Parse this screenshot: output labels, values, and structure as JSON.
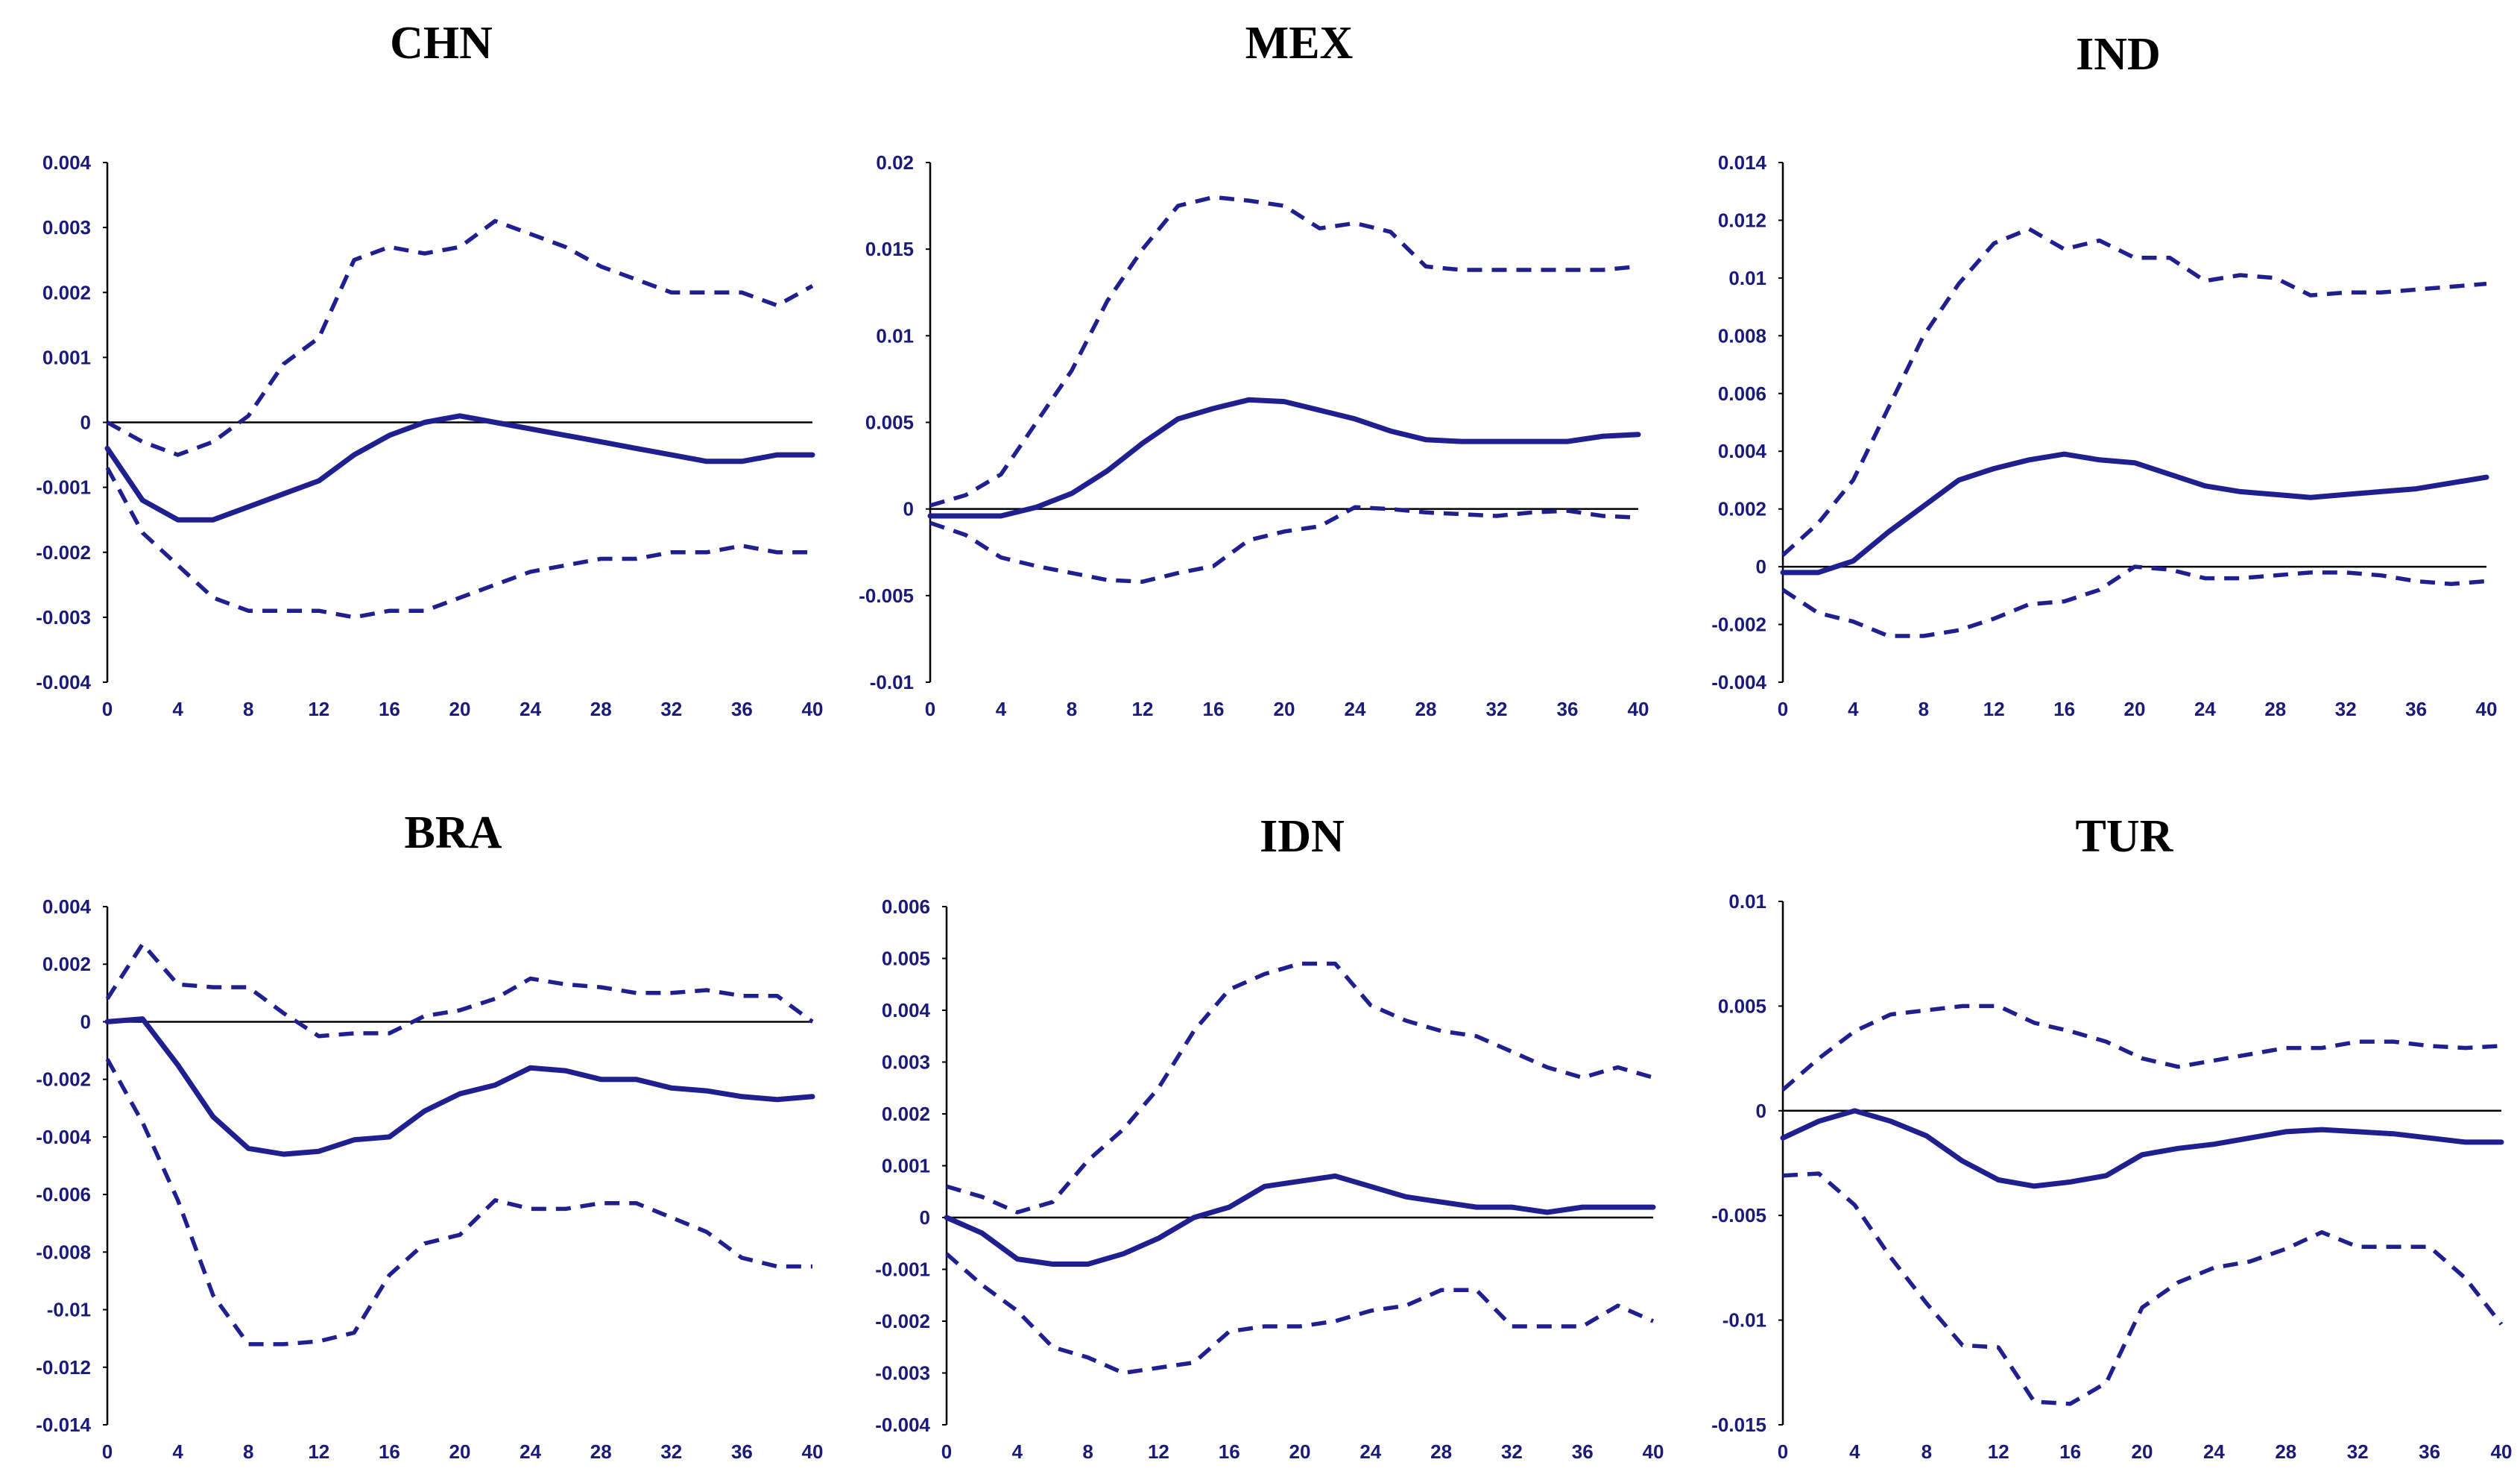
{
  "colors": {
    "series": "#1f1f8f",
    "tick_text": "#1a1a7a",
    "axis": "#000000"
  },
  "chart_data": [
    {
      "type": "line",
      "title": "CHN",
      "ylim": [
        -0.004,
        0.004
      ],
      "yticks": [
        0.004,
        0.003,
        0.002,
        0.001,
        0,
        -0.001,
        -0.002,
        -0.003,
        -0.004
      ],
      "ytick_labels": [
        "0.004",
        "0.003",
        "0.002",
        "0.001",
        "0",
        "-0.001",
        "-0.002",
        "-0.003",
        "-0.004"
      ],
      "xticks": [
        0,
        4,
        8,
        12,
        16,
        20,
        24,
        28,
        32,
        36,
        40
      ],
      "xtick_labels": [
        "0",
        "4",
        "8",
        "12",
        "16",
        "20",
        "24",
        "28",
        "32",
        "36",
        "40"
      ],
      "x": [
        0,
        2,
        4,
        6,
        8,
        10,
        12,
        14,
        16,
        18,
        20,
        22,
        24,
        26,
        28,
        30,
        32,
        34,
        36,
        38,
        40
      ],
      "series": [
        {
          "name": "upper",
          "style": "dashed",
          "values": [
            0.0,
            -0.0003,
            -0.0005,
            -0.0003,
            0.0001,
            0.0009,
            0.0013,
            0.0025,
            0.0027,
            0.0026,
            0.0027,
            0.0031,
            0.0029,
            0.0027,
            0.0024,
            0.0022,
            0.002,
            0.002,
            0.002,
            0.0018,
            0.0021
          ]
        },
        {
          "name": "irf",
          "style": "solid",
          "values": [
            -0.0004,
            -0.0012,
            -0.0015,
            -0.0015,
            -0.0013,
            -0.0011,
            -0.0009,
            -0.0005,
            -0.0002,
            0.0,
            0.0001,
            0.0,
            -0.0001,
            -0.0002,
            -0.0003,
            -0.0004,
            -0.0005,
            -0.0006,
            -0.0006,
            -0.0005,
            -0.0005
          ]
        },
        {
          "name": "lower",
          "style": "dashed",
          "values": [
            -0.0007,
            -0.0017,
            -0.0022,
            -0.0027,
            -0.0029,
            -0.0029,
            -0.0029,
            -0.003,
            -0.0029,
            -0.0029,
            -0.0027,
            -0.0025,
            -0.0023,
            -0.0022,
            -0.0021,
            -0.0021,
            -0.002,
            -0.002,
            -0.0019,
            -0.002,
            -0.002
          ]
        }
      ]
    },
    {
      "type": "line",
      "title": "MEX",
      "ylim": [
        -0.01,
        0.02
      ],
      "yticks": [
        0.02,
        0.015,
        0.01,
        0.005,
        0,
        -0.005,
        -0.01
      ],
      "ytick_labels": [
        "0.02",
        "0.015",
        "0.01",
        "0.005",
        "0",
        "-0.005",
        "-0.01"
      ],
      "xticks": [
        0,
        4,
        8,
        12,
        16,
        20,
        24,
        28,
        32,
        36,
        40
      ],
      "xtick_labels": [
        "0",
        "4",
        "8",
        "12",
        "16",
        "20",
        "24",
        "28",
        "32",
        "36",
        "40"
      ],
      "x": [
        0,
        2,
        4,
        6,
        8,
        10,
        12,
        14,
        16,
        18,
        20,
        22,
        24,
        26,
        28,
        30,
        32,
        34,
        36,
        38,
        40
      ],
      "series": [
        {
          "name": "upper",
          "style": "dashed",
          "values": [
            0.0002,
            0.0008,
            0.002,
            0.005,
            0.008,
            0.012,
            0.015,
            0.0175,
            0.018,
            0.0178,
            0.0175,
            0.0162,
            0.0165,
            0.016,
            0.014,
            0.0138,
            0.0138,
            0.0138,
            0.0138,
            0.0138,
            0.014
          ]
        },
        {
          "name": "irf",
          "style": "solid",
          "values": [
            -0.0004,
            -0.0004,
            -0.0004,
            0.0001,
            0.0009,
            0.0022,
            0.0038,
            0.0052,
            0.0058,
            0.0063,
            0.0062,
            0.0057,
            0.0052,
            0.0045,
            0.004,
            0.0039,
            0.0039,
            0.0039,
            0.0039,
            0.0042,
            0.0043
          ]
        },
        {
          "name": "lower",
          "style": "dashed",
          "values": [
            -0.0008,
            -0.0015,
            -0.0028,
            -0.0033,
            -0.0037,
            -0.0041,
            -0.0042,
            -0.0037,
            -0.0033,
            -0.0018,
            -0.0013,
            -0.001,
            0.0001,
            0.0,
            -0.0002,
            -0.0003,
            -0.0004,
            -0.0002,
            -0.0001,
            -0.0004,
            -0.0005
          ]
        }
      ]
    },
    {
      "type": "line",
      "title": "IND",
      "ylim": [
        -0.004,
        0.014
      ],
      "yticks": [
        0.014,
        0.012,
        0.01,
        0.008,
        0.006,
        0.004,
        0.002,
        0,
        -0.002,
        -0.004
      ],
      "ytick_labels": [
        "0.014",
        "0.012",
        "0.01",
        "0.008",
        "0.006",
        "0.004",
        "0.002",
        "0",
        "-0.002",
        "-0.004"
      ],
      "xticks": [
        0,
        4,
        8,
        12,
        16,
        20,
        24,
        28,
        32,
        36,
        40
      ],
      "xtick_labels": [
        "0",
        "4",
        "8",
        "12",
        "16",
        "20",
        "24",
        "28",
        "32",
        "36",
        "40"
      ],
      "x": [
        0,
        2,
        4,
        6,
        8,
        10,
        12,
        14,
        16,
        18,
        20,
        22,
        24,
        26,
        28,
        30,
        32,
        34,
        36,
        38,
        40
      ],
      "series": [
        {
          "name": "upper",
          "style": "dashed",
          "values": [
            0.0004,
            0.0015,
            0.003,
            0.0055,
            0.008,
            0.0098,
            0.0112,
            0.0117,
            0.011,
            0.0113,
            0.0107,
            0.0107,
            0.0099,
            0.0101,
            0.01,
            0.0094,
            0.0095,
            0.0095,
            0.0096,
            0.0097,
            0.0098
          ]
        },
        {
          "name": "irf",
          "style": "solid",
          "values": [
            -0.0002,
            -0.0002,
            0.0002,
            0.0012,
            0.0021,
            0.003,
            0.0034,
            0.0037,
            0.0039,
            0.0037,
            0.0036,
            0.0032,
            0.0028,
            0.0026,
            0.0025,
            0.0024,
            0.0025,
            0.0026,
            0.0027,
            0.0029,
            0.0031
          ]
        },
        {
          "name": "lower",
          "style": "dashed",
          "values": [
            -0.0008,
            -0.0016,
            -0.0019,
            -0.0024,
            -0.0024,
            -0.0022,
            -0.0018,
            -0.0013,
            -0.0012,
            -0.0008,
            0.0,
            -0.0001,
            -0.0004,
            -0.0004,
            -0.0003,
            -0.0002,
            -0.0002,
            -0.0003,
            -0.0005,
            -0.0006,
            -0.0005
          ]
        }
      ]
    },
    {
      "type": "line",
      "title": "BRA",
      "ylim": [
        -0.014,
        0.004
      ],
      "yticks": [
        0.004,
        0.002,
        0,
        -0.002,
        -0.004,
        -0.006,
        -0.008,
        -0.01,
        -0.012,
        -0.014
      ],
      "ytick_labels": [
        "0.004",
        "0.002",
        "0",
        "-0.002",
        "-0.004",
        "-0.006",
        "-0.008",
        "-0.01",
        "-0.012",
        "-0.014"
      ],
      "xticks": [
        0,
        4,
        8,
        12,
        16,
        20,
        24,
        28,
        32,
        36,
        40
      ],
      "xtick_labels": [
        "0",
        "4",
        "8",
        "12",
        "16",
        "20",
        "24",
        "28",
        "32",
        "36",
        "40"
      ],
      "x": [
        0,
        2,
        4,
        6,
        8,
        10,
        12,
        14,
        16,
        18,
        20,
        22,
        24,
        26,
        28,
        30,
        32,
        34,
        36,
        38,
        40
      ],
      "series": [
        {
          "name": "upper",
          "style": "dashed",
          "values": [
            0.0008,
            0.0027,
            0.0013,
            0.0012,
            0.0012,
            0.0003,
            -0.0005,
            -0.0004,
            -0.0004,
            0.0002,
            0.0004,
            0.0008,
            0.0015,
            0.0013,
            0.0012,
            0.001,
            0.001,
            0.0011,
            0.0009,
            0.0009,
            0.0
          ]
        },
        {
          "name": "irf",
          "style": "solid",
          "values": [
            0.0,
            0.0001,
            -0.0015,
            -0.0033,
            -0.0044,
            -0.0046,
            -0.0045,
            -0.0041,
            -0.004,
            -0.0031,
            -0.0025,
            -0.0022,
            -0.0016,
            -0.0017,
            -0.002,
            -0.002,
            -0.0023,
            -0.0024,
            -0.0026,
            -0.0027,
            -0.0026
          ]
        },
        {
          "name": "lower",
          "style": "dashed",
          "values": [
            -0.0013,
            -0.0035,
            -0.0062,
            -0.0095,
            -0.0112,
            -0.0112,
            -0.0111,
            -0.0108,
            -0.0088,
            -0.0077,
            -0.0074,
            -0.0062,
            -0.0065,
            -0.0065,
            -0.0063,
            -0.0063,
            -0.0068,
            -0.0073,
            -0.0082,
            -0.0085,
            -0.0085
          ]
        }
      ]
    },
    {
      "type": "line",
      "title": "IDN",
      "ylim": [
        -0.004,
        0.006
      ],
      "yticks": [
        0.006,
        0.005,
        0.004,
        0.003,
        0.002,
        0.001,
        0,
        -0.001,
        -0.002,
        -0.003,
        -0.004
      ],
      "ytick_labels": [
        "0.006",
        "0.005",
        "0.004",
        "0.003",
        "0.002",
        "0.001",
        "0",
        "-0.001",
        "-0.002",
        "-0.003",
        "-0.004"
      ],
      "xticks": [
        0,
        4,
        8,
        12,
        16,
        20,
        24,
        28,
        32,
        36,
        40
      ],
      "xtick_labels": [
        "0",
        "4",
        "8",
        "12",
        "16",
        "20",
        "24",
        "28",
        "32",
        "36",
        "40"
      ],
      "x": [
        0,
        2,
        4,
        6,
        8,
        10,
        12,
        14,
        16,
        18,
        20,
        22,
        24,
        26,
        28,
        30,
        32,
        34,
        36,
        38,
        40
      ],
      "series": [
        {
          "name": "upper",
          "style": "dashed",
          "values": [
            0.0006,
            0.0004,
            0.0001,
            0.0003,
            0.0011,
            0.0017,
            0.0025,
            0.0036,
            0.0044,
            0.0047,
            0.0049,
            0.0049,
            0.0041,
            0.0038,
            0.0036,
            0.0035,
            0.0032,
            0.0029,
            0.0027,
            0.0029,
            0.0027
          ]
        },
        {
          "name": "irf",
          "style": "solid",
          "values": [
            0.0,
            -0.0003,
            -0.0008,
            -0.0009,
            -0.0009,
            -0.0007,
            -0.0004,
            0.0,
            0.0002,
            0.0006,
            0.0007,
            0.0008,
            0.0006,
            0.0004,
            0.0003,
            0.0002,
            0.0002,
            0.0001,
            0.0002,
            0.0002,
            0.0002
          ]
        },
        {
          "name": "lower",
          "style": "dashed",
          "values": [
            -0.0007,
            -0.0013,
            -0.0018,
            -0.0025,
            -0.0027,
            -0.003,
            -0.0029,
            -0.0028,
            -0.0022,
            -0.0021,
            -0.0021,
            -0.002,
            -0.0018,
            -0.0017,
            -0.0014,
            -0.0014,
            -0.0021,
            -0.0021,
            -0.0021,
            -0.0017,
            -0.002
          ]
        }
      ]
    },
    {
      "type": "line",
      "title": "TUR",
      "ylim": [
        -0.015,
        0.01
      ],
      "yticks": [
        0.01,
        0.005,
        0,
        -0.005,
        -0.01,
        -0.015
      ],
      "ytick_labels": [
        "0.01",
        "0.005",
        "0",
        "-0.005",
        "-0.01",
        "-0.015"
      ],
      "xticks": [
        0,
        4,
        8,
        12,
        16,
        20,
        24,
        28,
        32,
        36,
        40
      ],
      "xtick_labels": [
        "0",
        "4",
        "8",
        "12",
        "16",
        "20",
        "24",
        "28",
        "32",
        "36",
        "40"
      ],
      "x": [
        0,
        2,
        4,
        6,
        8,
        10,
        12,
        14,
        16,
        18,
        20,
        22,
        24,
        26,
        28,
        30,
        32,
        34,
        36,
        38,
        40
      ],
      "series": [
        {
          "name": "upper",
          "style": "dashed",
          "values": [
            0.001,
            0.0025,
            0.0038,
            0.0046,
            0.0048,
            0.005,
            0.005,
            0.0042,
            0.0038,
            0.0033,
            0.0025,
            0.0021,
            0.0024,
            0.0027,
            0.003,
            0.003,
            0.0033,
            0.0033,
            0.0031,
            0.003,
            0.0031
          ]
        },
        {
          "name": "irf",
          "style": "solid",
          "values": [
            -0.0013,
            -0.0005,
            0.0,
            -0.0005,
            -0.0012,
            -0.0024,
            -0.0033,
            -0.0036,
            -0.0034,
            -0.0031,
            -0.0021,
            -0.0018,
            -0.0016,
            -0.0013,
            -0.001,
            -0.0009,
            -0.001,
            -0.0011,
            -0.0013,
            -0.0015,
            -0.0015
          ]
        },
        {
          "name": "lower",
          "style": "dashed",
          "values": [
            -0.0031,
            -0.003,
            -0.0045,
            -0.007,
            -0.0092,
            -0.0112,
            -0.0113,
            -0.0139,
            -0.014,
            -0.013,
            -0.0094,
            -0.0082,
            -0.0075,
            -0.0072,
            -0.0066,
            -0.0058,
            -0.0065,
            -0.0065,
            -0.0065,
            -0.008,
            -0.0102
          ]
        }
      ]
    }
  ]
}
